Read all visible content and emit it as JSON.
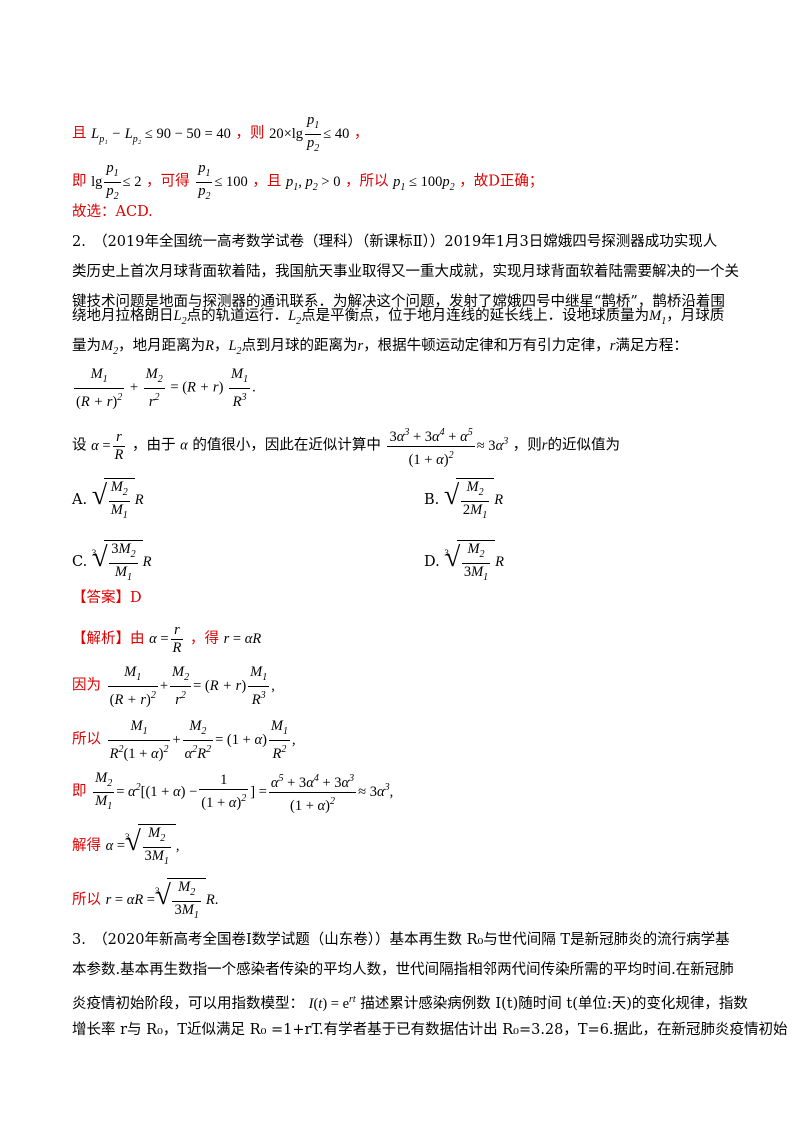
{
  "doc": {
    "l1_a": "且",
    "l1_b": "，则",
    "l1_c": "，",
    "l2_a": "即",
    "l2_b": "，可得",
    "l2_c": "，且",
    "l2_d": "，所以",
    "l2_e": "，故D正确；",
    "l3": "故选：ACD.",
    "q2_line1": "2.　（2019年全国统一高考数学试卷（理科）（新课标Ⅱ））2019年1月3日嫦娥四号探测器成功实现人",
    "q2_line2": "类历史上首次月球背面软着陆，我国航天事业取得又一重大成就，实现月球背面软着陆需要解决的一个关",
    "q2_line3": "键技术问题是地面与探测器的通讯联系．为解决这个问题，发射了嫦娥四号中继星“鹊桥”，鹊桥沿着围",
    "q2_line4a": "绕地月拉格朗日",
    "q2_line4b": "点的轨道运行．",
    "q2_line4c": "点是平衡点，位于地月连线的延长线上．设地球质量为",
    "q2_line4d": "，月球质",
    "q2_line5a": "量为",
    "q2_line5b": "，地月距离为",
    "q2_line5c": "，",
    "q2_line5d": "点到月球的距离为",
    "q2_line5e": "，根据牛顿运动定律和万有引力定律，",
    "q2_line5f": "满足方程：",
    "q2_line7a": "设",
    "q2_line7b": "，由于",
    "q2_line7c": "的值很小，因此在近似计算中",
    "q2_line7d": "，则",
    "q2_line7e": "的近似值为",
    "opt_a": "A.",
    "opt_b": "B.",
    "opt_c": "C.",
    "opt_d": "D.",
    "answer_label": "【答案】",
    "answer_value": "D",
    "sol_label": "【解析】",
    "sol_1a": "由",
    "sol_1b": "，得",
    "sol_2": "因为",
    "sol_3": "所以",
    "sol_4": "即",
    "sol_5": "解得",
    "sol_6": "所以",
    "q3_line1": "3.　（2020年新高考全国卷Ⅰ数学试题（山东卷））基本再生数 R₀与世代间隔 T是新冠肺炎的流行病学基",
    "q3_line2": "本参数.基本再生数指一个感染者传染的平均人数，世代间隔指相邻两代间传染所需的平均时间.在新冠肺",
    "q3_line3a": "炎疫情初始阶段，可以用指数模型：",
    "q3_line3b": "描述累计感染病例数 I(t)随时间 t(单位:天)的变化规律，指数",
    "q3_line4": "增长率 r与 R₀，T近似满足 R₀ =1+rT.有学者基于已有数据估计出 R₀=3.28，T=6.据此，在新冠肺炎疫情初始"
  }
}
